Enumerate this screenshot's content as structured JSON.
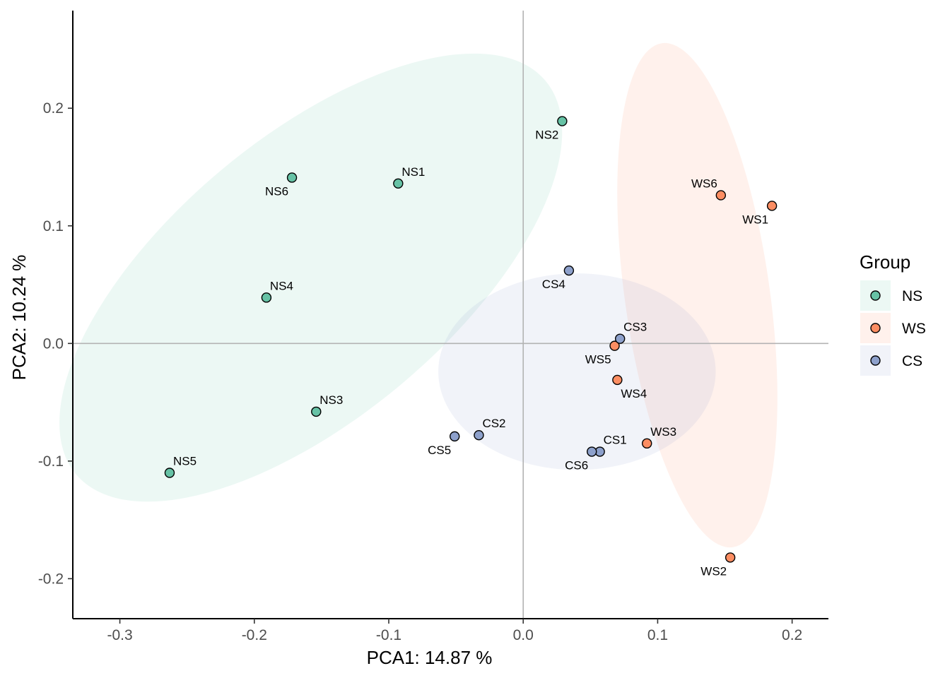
{
  "chart_data": {
    "type": "scatter",
    "xlabel": "PCA1:  14.87 %",
    "ylabel": "PCA2:  10.24 %",
    "xlim": [
      -0.335,
      0.227
    ],
    "ylim": [
      -0.234,
      0.283
    ],
    "x_ticks": [
      {
        "value": -0.3,
        "label": "-0.3"
      },
      {
        "value": -0.2,
        "label": "-0.2"
      },
      {
        "value": -0.1,
        "label": "-0.1"
      },
      {
        "value": 0.0,
        "label": "0.0"
      },
      {
        "value": 0.1,
        "label": "0.1"
      },
      {
        "value": 0.2,
        "label": "0.2"
      }
    ],
    "y_ticks": [
      {
        "value": -0.2,
        "label": "-0.2"
      },
      {
        "value": -0.1,
        "label": "-0.1"
      },
      {
        "value": 0.0,
        "label": "0.0"
      },
      {
        "value": 0.1,
        "label": "0.1"
      },
      {
        "value": 0.2,
        "label": "0.2"
      }
    ],
    "reference_lines": {
      "x": 0.0,
      "y": 0.0
    },
    "legend": {
      "title": "Group",
      "position": "right"
    },
    "groups": [
      {
        "name": "NS",
        "color": "#66c2a5",
        "ellipse": {
          "cx": -0.158,
          "cy": 0.056,
          "rx": 0.243,
          "ry": 0.111,
          "angle_deg": 40,
          "fill": "#66c2a5",
          "opacity": 0.12
        },
        "points": [
          {
            "label": "NS1",
            "x": -0.093,
            "y": 0.136,
            "label_pos": "above-right"
          },
          {
            "label": "NS2",
            "x": 0.029,
            "y": 0.189,
            "label_pos": "below-left"
          },
          {
            "label": "NS3",
            "x": -0.154,
            "y": -0.058,
            "label_pos": "above-right"
          },
          {
            "label": "NS4",
            "x": -0.191,
            "y": 0.039,
            "label_pos": "above-right"
          },
          {
            "label": "NS5",
            "x": -0.263,
            "y": -0.11,
            "label_pos": "above-right"
          },
          {
            "label": "NS6",
            "x": -0.172,
            "y": 0.141,
            "label_pos": "below-left"
          }
        ]
      },
      {
        "name": "WS",
        "color": "#fc8d62",
        "ellipse": {
          "cx": 0.1295,
          "cy": 0.041,
          "rx": 0.0575,
          "ry": 0.202,
          "angle_deg": 8,
          "fill": "#fc8d62",
          "opacity": 0.12
        },
        "points": [
          {
            "label": "WS1",
            "x": 0.185,
            "y": 0.117,
            "label_pos": "below-left"
          },
          {
            "label": "WS2",
            "x": 0.154,
            "y": -0.182,
            "label_pos": "below-left"
          },
          {
            "label": "WS3",
            "x": 0.092,
            "y": -0.085,
            "label_pos": "above-right"
          },
          {
            "label": "WS4",
            "x": 0.07,
            "y": -0.031,
            "label_pos": "below-right"
          },
          {
            "label": "WS5",
            "x": 0.068,
            "y": -0.002,
            "label_pos": "below-left"
          },
          {
            "label": "WS6",
            "x": 0.147,
            "y": 0.126,
            "label_pos": "above-left"
          }
        ]
      },
      {
        "name": "CS",
        "color": "#8da0cb",
        "ellipse": {
          "cx": 0.04,
          "cy": -0.024,
          "rx": 0.11,
          "ry": 0.078,
          "angle_deg": 0,
          "fill": "#8da0cb",
          "opacity": 0.12
        },
        "points": [
          {
            "label": "CS1",
            "x": 0.057,
            "y": -0.092,
            "label_pos": "above-right"
          },
          {
            "label": "CS2",
            "x": -0.033,
            "y": -0.078,
            "label_pos": "above-right"
          },
          {
            "label": "CS3",
            "x": 0.072,
            "y": 0.004,
            "label_pos": "above-right"
          },
          {
            "label": "CS4",
            "x": 0.034,
            "y": 0.062,
            "label_pos": "below-left"
          },
          {
            "label": "CS5",
            "x": -0.051,
            "y": -0.079,
            "label_pos": "below-left"
          },
          {
            "label": "CS6",
            "x": 0.051,
            "y": -0.092,
            "label_pos": "below-left"
          }
        ]
      }
    ]
  }
}
